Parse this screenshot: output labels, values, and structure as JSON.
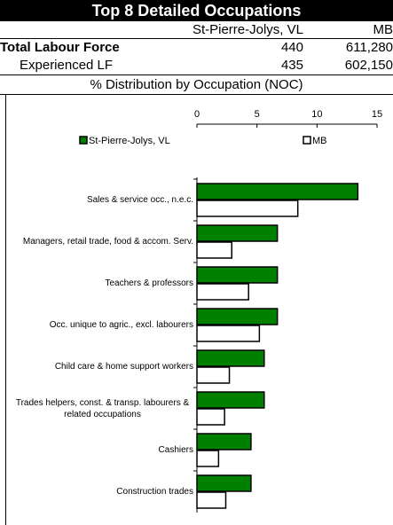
{
  "header": {
    "title": "Top 8 Detailed Occupations",
    "table": {
      "columns": [
        "St-Pierre-Jolys, VL",
        "MB"
      ],
      "rows": [
        [
          "Total Labour Force",
          "440",
          "611,280"
        ],
        [
          "Experienced LF",
          "435",
          "602,150"
        ]
      ]
    },
    "subtitle": "% Distribution by Occupation (NOC)"
  },
  "chart_data": {
    "type": "bar",
    "orientation": "horizontal",
    "categories": [
      "Sales & service occ., n.e.c.",
      "Managers, retail trade, food & accom. Serv.",
      "Teachers & professors",
      "Occ. unique to agric., excl. labourers",
      "Child care & home support workers",
      "Trades helpers, const. & transp. labourers & related occupations",
      "Cashiers",
      "Construction trades"
    ],
    "series": [
      {
        "name": "St-Pierre-Jolys, VL",
        "color": "#008000",
        "values": [
          13.4,
          6.7,
          6.7,
          6.7,
          5.6,
          5.6,
          4.5,
          4.5
        ]
      },
      {
        "name": "MB",
        "color": "#ffffff",
        "values": [
          8.4,
          2.9,
          4.3,
          5.2,
          2.7,
          2.3,
          1.8,
          2.4
        ]
      }
    ],
    "xlim": [
      0,
      15
    ],
    "xticks": [
      0,
      5,
      10,
      15
    ],
    "legend": "top"
  }
}
